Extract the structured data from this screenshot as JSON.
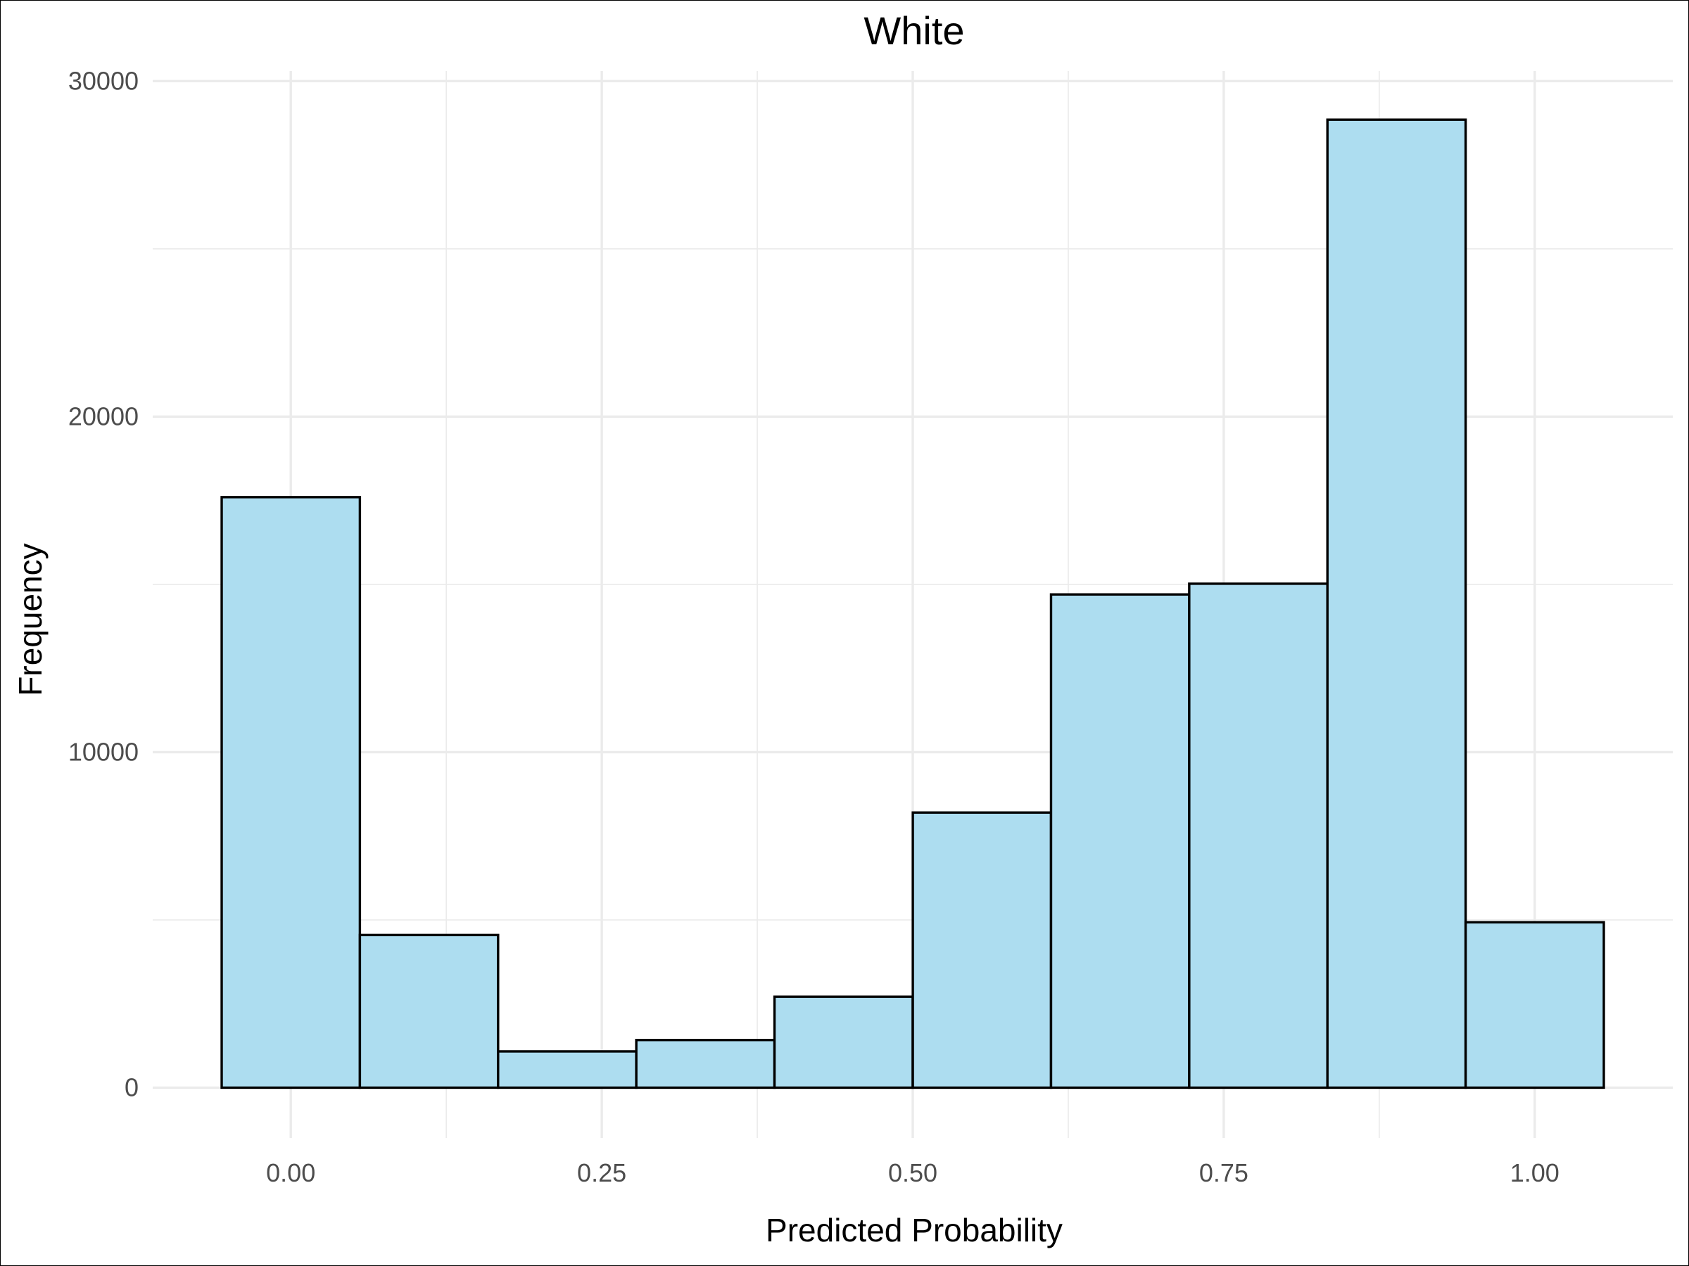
{
  "chart_data": {
    "type": "bar",
    "title": "White",
    "xlabel": "Predicted Probability",
    "ylabel": "Frequency",
    "x_ticks": [
      "0.00",
      "0.25",
      "0.50",
      "0.75",
      "1.00"
    ],
    "x_tick_values": [
      0,
      0.25,
      0.5,
      0.75,
      1.0
    ],
    "y_ticks": [
      "0",
      "10000",
      "20000",
      "30000"
    ],
    "y_tick_values": [
      0,
      10000,
      20000,
      30000
    ],
    "xlim": [
      -0.111,
      1.111
    ],
    "ylim": [
      -1500,
      30300
    ],
    "bin_width": 0.1111,
    "bin_centers": [
      0.0,
      0.1111,
      0.2222,
      0.3333,
      0.4444,
      0.5556,
      0.6667,
      0.7778,
      0.8889,
      1.0
    ],
    "values": [
      17600,
      4550,
      1080,
      1420,
      2710,
      8200,
      14700,
      15020,
      28850,
      4930
    ],
    "grid": true,
    "bar_fill": "#ADDDF0",
    "bar_stroke": "#000000",
    "grid_color": "#EBEBEB"
  }
}
